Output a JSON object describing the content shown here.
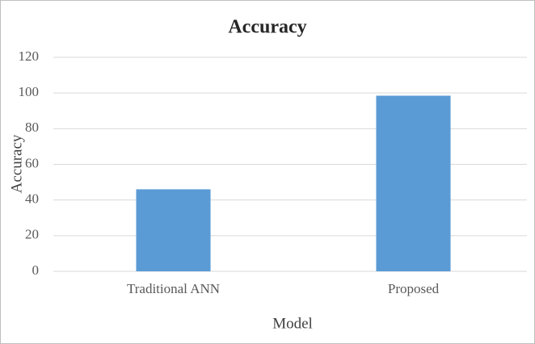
{
  "chart_data": {
    "type": "bar",
    "title": "Accuracy",
    "x_label": "Model",
    "y_label": "Accuracy",
    "categories": [
      "Traditional ANN",
      "Proposed"
    ],
    "values": [
      46,
      98.5
    ],
    "color": "#5b9bd5",
    "ylim": [
      0,
      120
    ],
    "yticks": [
      0,
      20,
      40,
      60,
      80,
      100,
      120
    ],
    "grid": true
  }
}
